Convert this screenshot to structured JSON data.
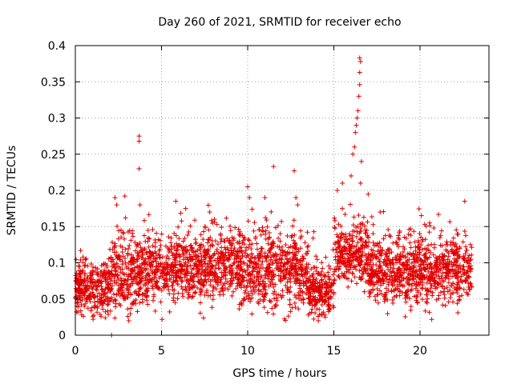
{
  "chart_data": {
    "type": "scatter",
    "title": "Day 260 of 2021, SRMTID for receiver echo",
    "xlabel": "GPS time / hours",
    "ylabel": "SRMTID / TECUs",
    "xlim": [
      0,
      24
    ],
    "ylim": [
      0,
      0.4
    ],
    "xticks": [
      0,
      5,
      10,
      15,
      20
    ],
    "xtick_labels": [
      "0",
      "5",
      "10",
      "15",
      "20"
    ],
    "yticks": [
      0,
      0.05,
      0.1,
      0.15,
      0.2,
      0.25,
      0.3,
      0.35,
      0.4
    ],
    "ytick_labels": [
      "0",
      "0.05",
      "0.1",
      "0.15",
      "0.2",
      "0.25",
      "0.3",
      "0.35",
      "0.4"
    ],
    "grid": true,
    "marker": "+",
    "color": "#e00000",
    "series": [
      {
        "name": "receiver echo",
        "segments": [
          {
            "x_start": 0.0,
            "x_end": 2.0,
            "mean": 0.065,
            "spread": 0.025
          },
          {
            "x_start": 2.0,
            "x_end": 3.5,
            "mean": 0.085,
            "spread": 0.035
          },
          {
            "x_start": 3.5,
            "x_end": 6.0,
            "mean": 0.09,
            "spread": 0.03
          },
          {
            "x_start": 6.0,
            "x_end": 9.5,
            "mean": 0.095,
            "spread": 0.03
          },
          {
            "x_start": 9.5,
            "x_end": 13.5,
            "mean": 0.09,
            "spread": 0.035
          },
          {
            "x_start": 13.5,
            "x_end": 15.0,
            "mean": 0.06,
            "spread": 0.02
          },
          {
            "x_start": 15.0,
            "x_end": 17.0,
            "mean": 0.115,
            "spread": 0.03
          },
          {
            "x_start": 17.0,
            "x_end": 23.0,
            "mean": 0.09,
            "spread": 0.03
          }
        ],
        "points_per_hour": 140,
        "peaks": [
          {
            "x": 2.3,
            "y": 0.19
          },
          {
            "x": 2.4,
            "y": 0.18
          },
          {
            "x": 3.7,
            "y": 0.275
          },
          {
            "x": 3.7,
            "y": 0.268
          },
          {
            "x": 3.7,
            "y": 0.23
          },
          {
            "x": 3.75,
            "y": 0.18
          },
          {
            "x": 10.0,
            "y": 0.205
          },
          {
            "x": 10.1,
            "y": 0.19
          },
          {
            "x": 11.5,
            "y": 0.233
          },
          {
            "x": 11.0,
            "y": 0.19
          },
          {
            "x": 12.7,
            "y": 0.227
          },
          {
            "x": 12.8,
            "y": 0.19
          },
          {
            "x": 12.9,
            "y": 0.18
          },
          {
            "x": 15.2,
            "y": 0.2
          },
          {
            "x": 15.5,
            "y": 0.21
          },
          {
            "x": 16.0,
            "y": 0.22
          },
          {
            "x": 16.1,
            "y": 0.25
          },
          {
            "x": 16.2,
            "y": 0.26
          },
          {
            "x": 16.25,
            "y": 0.28
          },
          {
            "x": 16.3,
            "y": 0.29
          },
          {
            "x": 16.35,
            "y": 0.3
          },
          {
            "x": 16.4,
            "y": 0.31
          },
          {
            "x": 16.45,
            "y": 0.33
          },
          {
            "x": 16.5,
            "y": 0.346
          },
          {
            "x": 16.5,
            "y": 0.363
          },
          {
            "x": 16.55,
            "y": 0.378
          },
          {
            "x": 16.5,
            "y": 0.383
          },
          {
            "x": 16.6,
            "y": 0.24
          },
          {
            "x": 16.55,
            "y": 0.21
          }
        ],
        "lows": [
          {
            "x": 2.1,
            "y": 0.0
          },
          {
            "x": 3.1,
            "y": 0.02
          },
          {
            "x": 14.1,
            "y": 0.02
          },
          {
            "x": 14.5,
            "y": 0.025
          }
        ]
      }
    ]
  }
}
